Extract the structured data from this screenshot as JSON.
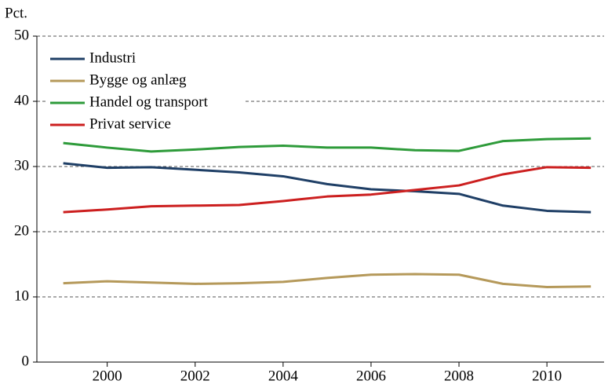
{
  "chart_data": {
    "type": "line",
    "y_unit_label": "Pct.",
    "x": [
      1999,
      2000,
      2001,
      2002,
      2003,
      2004,
      2005,
      2006,
      2007,
      2008,
      2009,
      2010,
      2011
    ],
    "xlim": [
      1998.4,
      2011.3
    ],
    "xticks": [
      2000,
      2002,
      2004,
      2006,
      2008,
      2010
    ],
    "ylim": [
      0,
      50
    ],
    "yticks": [
      0,
      10,
      20,
      30,
      40,
      50
    ],
    "grid": true,
    "legend": "upper-left",
    "series": [
      {
        "name": "Industri",
        "color": "#1f3f66",
        "values": [
          30.5,
          29.8,
          29.9,
          29.5,
          29.1,
          28.5,
          27.3,
          26.5,
          26.2,
          25.8,
          24.0,
          23.2,
          23.0
        ]
      },
      {
        "name": "Bygge og anlæg",
        "color": "#b5995a",
        "values": [
          12.1,
          12.4,
          12.2,
          12.0,
          12.1,
          12.3,
          12.9,
          13.4,
          13.5,
          13.4,
          12.0,
          11.5,
          11.6
        ]
      },
      {
        "name": "Handel og transport",
        "color": "#2e9b3a",
        "values": [
          33.6,
          32.9,
          32.3,
          32.6,
          33.0,
          33.2,
          32.9,
          32.9,
          32.5,
          32.4,
          33.9,
          34.2,
          34.3
        ]
      },
      {
        "name": "Privat service",
        "color": "#cc1f1f",
        "values": [
          23.0,
          23.4,
          23.9,
          24.0,
          24.1,
          24.7,
          25.4,
          25.7,
          26.4,
          27.1,
          28.8,
          29.9,
          29.8
        ]
      }
    ]
  }
}
